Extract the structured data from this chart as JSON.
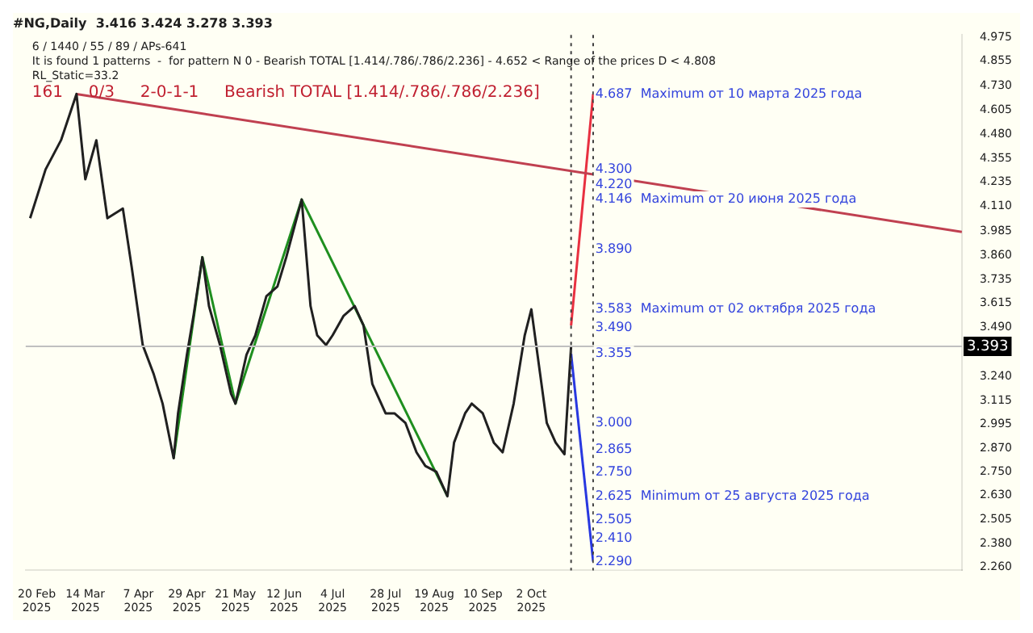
{
  "chart_data": {
    "type": "line",
    "title": "#NG,Daily  3.416 3.424 3.278 3.393",
    "annotations": [
      "6 / 1440 / 55 / 89 / APs-641",
      "It is found 1 patterns  -  for pattern N 0 - Bearish TOTAL [1.414/.786/.786/2.236] - 4.652 < Range of the prices D < 4.808",
      "RL_Static=33.2",
      "161     0/3     2-0-1-1     Bearish TOTAL [1.414/.786/.786/2.236]",
      {
        "text": "4.687  Maximum от 10 марта 2025 года",
        "x": "2025-10-31",
        "y": 4.687
      },
      {
        "text": "4.300",
        "x": "2025-10-31",
        "y": 4.3
      },
      {
        "text": "4.220",
        "x": "2025-10-31",
        "y": 4.22
      },
      {
        "text": "4.146  Maximum от 20 июня 2025 года",
        "x": "2025-10-31",
        "y": 4.146
      },
      {
        "text": "3.890",
        "x": "2025-10-31",
        "y": 3.89
      },
      {
        "text": "3.583  Maximum от 02 октября 2025 года",
        "x": "2025-10-31",
        "y": 3.583
      },
      {
        "text": "3.490",
        "x": "2025-10-31",
        "y": 3.49
      },
      {
        "text": "3.355",
        "x": "2025-10-31",
        "y": 3.355
      },
      {
        "text": "3.000",
        "x": "2025-10-31",
        "y": 3.0
      },
      {
        "text": "2.865",
        "x": "2025-10-31",
        "y": 2.865
      },
      {
        "text": "2.750",
        "x": "2025-10-31",
        "y": 2.75
      },
      {
        "text": "2.625  Minimum от 25 августа 2025 года",
        "x": "2025-10-31",
        "y": 2.625
      },
      {
        "text": "2.505",
        "x": "2025-10-31",
        "y": 2.505
      },
      {
        "text": "2.410",
        "x": "2025-10-31",
        "y": 2.41
      },
      {
        "text": "2.290",
        "x": "2025-10-31",
        "y": 2.29
      }
    ],
    "xlim": [
      "2025-02-15",
      "2026-04-15"
    ],
    "xticks": [
      {
        "value": "2025-02-20",
        "label": "20 Feb 2025"
      },
      {
        "value": "2025-03-14",
        "label": "14 Mar 2025"
      },
      {
        "value": "2025-04-07",
        "label": "7 Apr 2025"
      },
      {
        "value": "2025-04-29",
        "label": "29 Apr 2025"
      },
      {
        "value": "2025-05-21",
        "label": "21 May 2025"
      },
      {
        "value": "2025-06-12",
        "label": "12 Jun 2025"
      },
      {
        "value": "2025-07-04",
        "label": "4 Jul 2025"
      },
      {
        "value": "2025-07-28",
        "label": "28 Jul 2025"
      },
      {
        "value": "2025-08-19",
        "label": "19 Aug 2025"
      },
      {
        "value": "2025-09-10",
        "label": "10 Sep 2025"
      },
      {
        "value": "2025-10-02",
        "label": "2 Oct 2025"
      }
    ],
    "ylim": [
      2.245,
      4.99
    ],
    "yticks": [
      {
        "value": 2.26,
        "label": "2.260"
      },
      {
        "value": 2.38,
        "label": "2.380"
      },
      2.505,
      {
        "value": 2.63,
        "label": "2.630"
      },
      {
        "value": 2.75,
        "label": "2.750"
      },
      {
        "value": 2.87,
        "label": "2.870"
      },
      2.995,
      3.115,
      {
        "value": 3.24,
        "label": "3.240"
      },
      {
        "value": 3.49,
        "label": "3.490"
      },
      3.615,
      3.735,
      {
        "value": 3.86,
        "label": "3.860"
      },
      3.985,
      {
        "value": 4.11,
        "label": "4.110"
      },
      4.235,
      4.355,
      {
        "value": 4.48,
        "label": "4.480"
      },
      4.605,
      {
        "value": 4.73,
        "label": "4.730"
      },
      4.855,
      4.975
    ],
    "ref_lines": [
      {
        "axis": "y",
        "value": 3.393,
        "label": "3.393",
        "color": "#c0c0c0",
        "line_style": "solid"
      },
      {
        "axis": "x",
        "value": "2025-10-20",
        "color": "#404040",
        "line_style": "dotted"
      },
      {
        "axis": "x",
        "value": "2025-10-30",
        "color": "#404040",
        "line_style": "dotted"
      }
    ],
    "series": [
      {
        "color": "#202020",
        "x": [
          "2025-02-17",
          "2025-02-24",
          "2025-03-03",
          "2025-03-10",
          "2025-03-14",
          "2025-03-19",
          "2025-03-24",
          "2025-03-31",
          "2025-04-04",
          "2025-04-09",
          "2025-04-14",
          "2025-04-18",
          "2025-04-23",
          "2025-04-25",
          "2025-04-29",
          "2025-05-02",
          "2025-05-06",
          "2025-05-09",
          "2025-05-14",
          "2025-05-19",
          "2025-05-21",
          "2025-05-26",
          "2025-05-30",
          "2025-06-04",
          "2025-06-09",
          "2025-06-13",
          "2025-06-20",
          "2025-06-24",
          "2025-06-27",
          "2025-07-01",
          "2025-07-04",
          "2025-07-09",
          "2025-07-14",
          "2025-07-18",
          "2025-07-22",
          "2025-07-28",
          "2025-08-01",
          "2025-08-06",
          "2025-08-11",
          "2025-08-15",
          "2025-08-20",
          "2025-08-25",
          "2025-08-28",
          "2025-09-02",
          "2025-09-05",
          "2025-09-10",
          "2025-09-15",
          "2025-09-19",
          "2025-09-24",
          "2025-09-29",
          "2025-10-02",
          "2025-10-06",
          "2025-10-09",
          "2025-10-13",
          "2025-10-17",
          "2025-10-20"
        ],
        "values": [
          4.05,
          4.3,
          4.45,
          4.687,
          4.25,
          4.45,
          4.05,
          4.1,
          3.8,
          3.4,
          3.25,
          3.1,
          2.82,
          3.05,
          3.35,
          3.55,
          3.85,
          3.6,
          3.4,
          3.15,
          3.1,
          3.35,
          3.45,
          3.65,
          3.7,
          3.85,
          4.146,
          3.6,
          3.45,
          3.4,
          3.45,
          3.55,
          3.6,
          3.5,
          3.2,
          3.05,
          3.05,
          3.0,
          2.85,
          2.78,
          2.75,
          2.625,
          2.9,
          3.05,
          3.1,
          3.05,
          2.9,
          2.85,
          3.1,
          3.45,
          3.583,
          3.25,
          3.0,
          2.9,
          2.84,
          3.393
        ]
      },
      {
        "color": "#1f8f1f",
        "x": [
          "2025-04-23",
          "2025-05-06",
          "2025-05-21",
          "2025-06-20",
          "2025-08-25"
        ],
        "values": [
          2.82,
          3.85,
          3.1,
          4.146,
          2.625
        ]
      },
      {
        "color": "#c04050",
        "x": [
          "2025-03-10",
          "2026-04-15"
        ],
        "values": [
          4.687,
          3.98
        ]
      },
      {
        "color": "#e83040",
        "x": [
          "2025-10-20",
          "2025-10-30"
        ],
        "values": [
          3.5,
          4.687
        ]
      },
      {
        "color": "#2838e0",
        "x": [
          "2025-10-20",
          "2025-10-30"
        ],
        "values": [
          3.355,
          2.29
        ]
      }
    ],
    "grid": false,
    "legend": false,
    "marker": "none",
    "line_style": "solid"
  }
}
